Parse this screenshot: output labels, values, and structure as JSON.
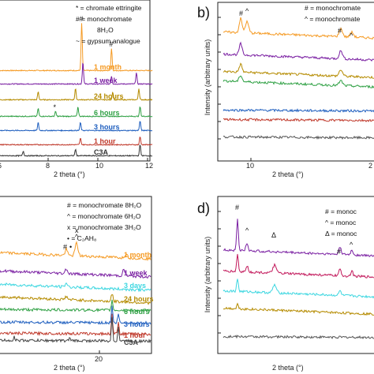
{
  "chart_data": [
    {
      "panel": "a",
      "panel_label": "",
      "type": "line",
      "xlabel": "2 theta (°)",
      "ylabel": "",
      "x_ticks": [
        "8",
        "10",
        "12"
      ],
      "x_partial_tick": "6",
      "legend": [
        "* = chromate ettringite",
        "# = monochromate",
        "8H₂O",
        "~ = gypsum analogue"
      ],
      "series": [
        {
          "name": "1 month",
          "color": "#F59A23",
          "peaks": [
            {
              "x": 9.35,
              "h": 60,
              "label": "#"
            },
            {
              "x": 10.55,
              "h": 28,
              "label": "#"
            }
          ]
        },
        {
          "name": "1 week",
          "color": "#7A1FA2",
          "peaks": [
            {
              "x": 9.4,
              "h": 28
            },
            {
              "x": 10.55,
              "h": 10
            },
            {
              "x": 11.55,
              "h": 14
            }
          ]
        },
        {
          "name": "24 hours",
          "color": "#B58B00",
          "peaks": [
            {
              "x": 7.6,
              "h": 10
            },
            {
              "x": 9.1,
              "h": 14
            },
            {
              "x": 10.6,
              "h": 10
            },
            {
              "x": 11.65,
              "h": 14
            }
          ]
        },
        {
          "name": "6 hours",
          "color": "#2EA043",
          "peaks": [
            {
              "x": 7.6,
              "h": 10
            },
            {
              "x": 8.3,
              "h": 6,
              "label": "*"
            },
            {
              "x": 9.2,
              "h": 12
            },
            {
              "x": 11.7,
              "h": 12
            }
          ]
        },
        {
          "name": "3 hours",
          "color": "#1F5FBF",
          "peaks": [
            {
              "x": 7.6,
              "h": 10
            },
            {
              "x": 9.3,
              "h": 10
            },
            {
              "x": 11.7,
              "h": 12
            }
          ]
        },
        {
          "name": "1 hour",
          "color": "#C0392B",
          "peaks": [
            {
              "x": 9.3,
              "h": 8
            },
            {
              "x": 11.7,
              "h": 10
            }
          ]
        },
        {
          "name": "C3A",
          "color": "#333333",
          "peaks": [
            {
              "x": 7.0,
              "h": 6
            },
            {
              "x": 9.1,
              "h": 8
            },
            {
              "x": 11.7,
              "h": 14
            }
          ]
        }
      ]
    },
    {
      "panel": "b",
      "panel_label": "b)",
      "type": "line",
      "xlabel": "2 theta (°)",
      "ylabel": "Intensity (arbitrary units)",
      "x_ticks": [
        "10"
      ],
      "x_partial_tick": "2",
      "legend": [
        "# = monochromate",
        "^ = monochromate"
      ],
      "annotations": [
        "#",
        "^",
        "#",
        "^"
      ],
      "series": [
        {
          "name": "",
          "color": "#F59A23"
        },
        {
          "name": "",
          "color": "#7A1FA2"
        },
        {
          "name": "",
          "color": "#B58B00"
        },
        {
          "name": "",
          "color": "#2EA043"
        },
        {
          "name": "",
          "color": "#1F5FBF"
        },
        {
          "name": "",
          "color": "#C0392B"
        },
        {
          "name": "",
          "color": "#555555"
        }
      ]
    },
    {
      "panel": "c",
      "panel_label": "",
      "type": "line",
      "xlabel": "2 theta (°)",
      "ylabel": "",
      "x_ticks": [
        "20"
      ],
      "legend": [
        "# = monochromate 8H₂O",
        "^ = monochromate 6H₂O",
        "x = monochromate 3H₂O",
        "• = C₂AH₈"
      ],
      "annotations": [
        "#",
        "•",
        "^",
        "x"
      ],
      "series": [
        {
          "name": "1 month",
          "color": "#F59A23"
        },
        {
          "name": "1 week",
          "color": "#7A1FA2"
        },
        {
          "name": "3 days",
          "color": "#3BD6E0"
        },
        {
          "name": "24 hours",
          "color": "#B58B00"
        },
        {
          "name": "6 hours",
          "color": "#2EA043"
        },
        {
          "name": "3 hours",
          "color": "#1F5FBF"
        },
        {
          "name": "1 hour",
          "color": "#C0392B"
        },
        {
          "name": "C3A",
          "color": "#444444"
        }
      ]
    },
    {
      "panel": "d",
      "panel_label": "d)",
      "type": "line",
      "xlabel": "2 theta (°)",
      "ylabel": "Intensity (arbitrary units)",
      "legend": [
        "# = monoc",
        "^ = monoc",
        "Δ = monoc"
      ],
      "annotations": [
        "#",
        "^",
        "Δ",
        "#",
        "^"
      ],
      "series": [
        {
          "name": "",
          "color": "#7A1FA2"
        },
        {
          "name": "",
          "color": "#C2185B"
        },
        {
          "name": "",
          "color": "#3BD6E0"
        },
        {
          "name": "",
          "color": "#B58B00"
        },
        {
          "name": "",
          "color": "#555555"
        }
      ]
    }
  ]
}
